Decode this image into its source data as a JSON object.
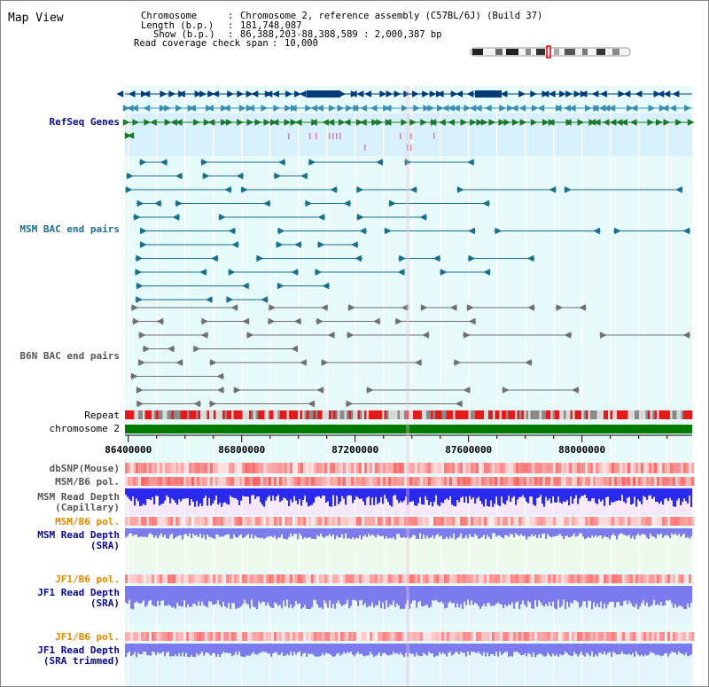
{
  "window": {
    "title": "Map View"
  },
  "info": {
    "chromosome_key": "Chromosome",
    "chromosome_val": "Chromosome 2, reference assembly (C57BL/6J) (Build 37)",
    "length_key": "Length (b.p.)",
    "length_val": "181,748,087",
    "show_key": "Show (b.p.)",
    "show_val": "86,388,203-88,388,589 : 2,000,387 bp",
    "coverage_key": "Read coverage check span",
    "coverage_val": "10,000"
  },
  "axis": {
    "start": 86388203,
    "end": 88388589,
    "ticks": [
      86400000,
      86800000,
      87200000,
      87600000,
      88000000
    ]
  },
  "ticks_text": [
    "86400000",
    "86800000",
    "87200000",
    "87600000",
    "88000000"
  ],
  "tracks": {
    "refseq": "RefSeq Genes",
    "msm_bac": "MSM BAC end pairs",
    "b6n_bac": "B6N BAC end pairs",
    "repeat": "Repeat",
    "chromosome": "chromosome 2",
    "dbsnp": "dbSNP(Mouse)",
    "msm_b6_pol_1": "MSM/B6 pol.",
    "msm_read_depth_cap_1": "MSM Read Depth",
    "msm_read_depth_cap_2": "(Capillary)",
    "msm_b6_pol_2": "MSM/B6 pol.",
    "msm_read_depth_sra_1": "MSM Read Depth",
    "msm_read_depth_sra_2": "(SRA)",
    "jf1_b6_pol_1": "JF1/B6 pol.",
    "jf1_read_depth_sra_1": "JF1 Read Depth",
    "jf1_read_depth_sra_2": "(SRA)",
    "jf1_b6_pol_2": "JF1/B6 pol.",
    "jf1_read_depth_trim_1": "JF1 Read Depth",
    "jf1_read_depth_trim_2": "(SRA trimmed)"
  },
  "colors": {
    "refseq": "#003a78",
    "refseq_alt": "#3a8fb0",
    "refseq_green": "#1a7a2a",
    "msm_bac": "#1a6f8a",
    "b6n_bac": "#707070",
    "repeat_red": "#e31a1a",
    "repeat_gray": "#8a8a8a",
    "chrom_green": "#007a00",
    "depth_blue": "#2a2aef",
    "depth_light": "#7b7bee",
    "label_navy": "#0a0a8a",
    "label_teal": "#1a6f8a",
    "label_orange": "#e08a00",
    "label_gray": "#555555"
  }
}
